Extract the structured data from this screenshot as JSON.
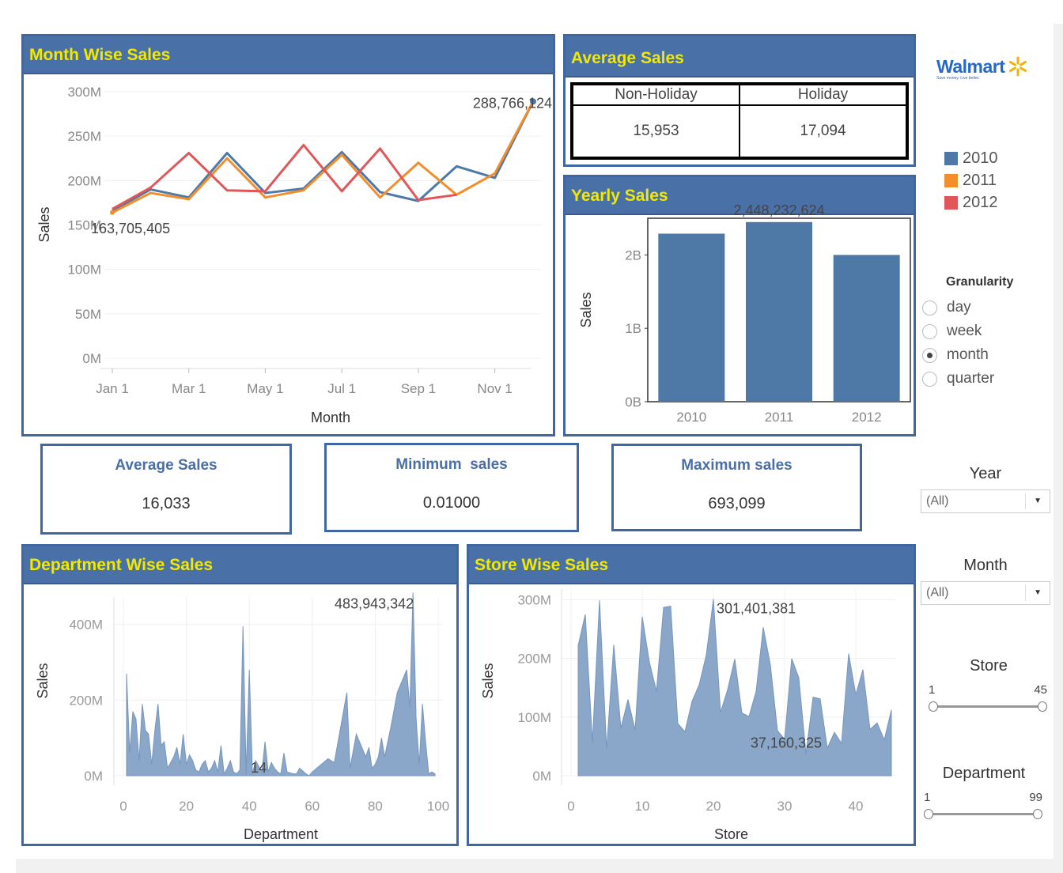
{
  "month_panel": {
    "title": "Month Wise Sales"
  },
  "avg_sales_panel": {
    "title": "Average Sales",
    "headers": [
      "Non-Holiday",
      "Holiday"
    ],
    "values": [
      "15,953",
      "17,094"
    ]
  },
  "yearly_panel": {
    "title": "Yearly Sales"
  },
  "department_panel": {
    "title": "Department Wise Sales"
  },
  "store_panel": {
    "title": "Store Wise Sales"
  },
  "kpis": [
    {
      "title": "Average Sales",
      "value": "16,033"
    },
    {
      "title": "Minimum  sales",
      "value": "0.01000"
    },
    {
      "title": "Maximum sales",
      "value": "693,099"
    }
  ],
  "logo": {
    "word": "Walmart",
    "tagline": "Save money. Live better."
  },
  "legend": {
    "items": [
      {
        "label": "2010",
        "color": "#4e79a7"
      },
      {
        "label": "2011",
        "color": "#f28e2b"
      },
      {
        "label": "2012",
        "color": "#e15759"
      }
    ]
  },
  "granularity": {
    "title": "Granularity",
    "options": [
      "day",
      "week",
      "month",
      "quarter"
    ],
    "selected": "month"
  },
  "filters": {
    "year": {
      "title": "Year",
      "value": "(All)"
    },
    "month": {
      "title": "Month",
      "value": "(All)"
    },
    "store": {
      "title": "Store",
      "min": "1",
      "max": "45"
    },
    "department": {
      "title": "Department",
      "min": "1",
      "max": "99"
    }
  },
  "chart_data": [
    {
      "id": "month",
      "type": "line",
      "xlabel": "Month",
      "ylabel": "Sales",
      "x_ticks": [
        "Jan 1",
        "Mar 1",
        "May 1",
        "Jul 1",
        "Sep 1",
        "Nov 1"
      ],
      "y_ticks": [
        "0M",
        "50M",
        "100M",
        "150M",
        "200M",
        "250M",
        "300M"
      ],
      "ylim": [
        0,
        300
      ],
      "y_unit": "M",
      "x_index_range": [
        1,
        12
      ],
      "series": [
        {
          "name": "2010",
          "color": "#4e79a7",
          "x": [
            1,
            2,
            3,
            4,
            5,
            6,
            7,
            8,
            9,
            10,
            11,
            12
          ],
          "values": [
            166,
            190,
            181,
            231,
            186,
            191,
            232,
            187,
            177,
            216,
            203,
            289
          ]
        },
        {
          "name": "2011",
          "color": "#f28e2b",
          "x": [
            1,
            2,
            3,
            4,
            5,
            6,
            7,
            8,
            9,
            10,
            11,
            12
          ],
          "values": [
            164,
            186,
            179,
            225,
            181,
            189,
            229,
            181,
            220,
            184,
            208,
            289
          ]
        },
        {
          "name": "2012",
          "color": "#e15759",
          "x": [
            1,
            2,
            3,
            4,
            5,
            6,
            7,
            8,
            9,
            10
          ],
          "values": [
            168,
            192,
            231,
            189,
            188,
            240,
            188,
            236,
            178,
            184
          ]
        }
      ],
      "annotations": [
        {
          "text": "288,766,124",
          "x": 12,
          "y": 289
        },
        {
          "text": "163,705,405",
          "x": 1,
          "y": 164
        }
      ]
    },
    {
      "id": "yearly",
      "type": "bar",
      "ylabel": "Sales",
      "categories": [
        "2010",
        "2011",
        "2012"
      ],
      "values": [
        2.29,
        2.448232624,
        2.0
      ],
      "y_ticks": [
        "0B",
        "1B",
        "2B"
      ],
      "ylim": [
        0,
        2.5
      ],
      "y_unit": "B",
      "annotations": [
        {
          "text": "2,448,232,624",
          "category": "2011"
        }
      ]
    },
    {
      "id": "department",
      "type": "area",
      "xlabel": "Department",
      "ylabel": "Sales",
      "x_ticks": [
        "0",
        "20",
        "40",
        "60",
        "80",
        "100"
      ],
      "y_ticks": [
        "0M",
        "200M",
        "400M"
      ],
      "xlim": [
        0,
        100
      ],
      "ylim": [
        0,
        460
      ],
      "y_unit": "M",
      "x": [
        1,
        2,
        3,
        4,
        5,
        6,
        7,
        8,
        9,
        10,
        11,
        12,
        13,
        14,
        16,
        17,
        18,
        19,
        20,
        21,
        22,
        23,
        24,
        25,
        26,
        27,
        28,
        29,
        30,
        31,
        32,
        33,
        34,
        35,
        36,
        37,
        38,
        39,
        40,
        41,
        42,
        44,
        45,
        46,
        47,
        48,
        49,
        50,
        51,
        52,
        54,
        55,
        56,
        58,
        59,
        60,
        65,
        67,
        71,
        72,
        74,
        77,
        78,
        79,
        80,
        81,
        82,
        83,
        85,
        87,
        90,
        91,
        92,
        93,
        94,
        95,
        96,
        97,
        98,
        99
      ],
      "values": [
        270,
        60,
        170,
        150,
        40,
        190,
        120,
        110,
        30,
        120,
        190,
        80,
        90,
        20,
        50,
        75,
        30,
        110,
        30,
        55,
        40,
        15,
        10,
        30,
        40,
        10,
        20,
        40,
        10,
        80,
        5,
        20,
        40,
        10,
        5,
        15,
        395,
        5,
        280,
        5,
        40,
        10,
        90,
        10,
        35,
        20,
        10,
        5,
        60,
        10,
        5,
        5,
        20,
        5,
        0,
        10,
        45,
        35,
        220,
        20,
        110,
        50,
        75,
        20,
        30,
        50,
        100,
        50,
        130,
        220,
        280,
        180,
        484,
        150,
        30,
        190,
        90,
        5,
        10,
        5
      ],
      "annotations": [
        {
          "text": "483,943,342",
          "x": 92,
          "y": 484
        },
        {
          "text": "14",
          "x": 43,
          "y": 0
        }
      ]
    },
    {
      "id": "store",
      "type": "area",
      "xlabel": "Store",
      "ylabel": "Sales",
      "x_ticks": [
        "0",
        "10",
        "20",
        "30",
        "40"
      ],
      "y_ticks": [
        "0M",
        "100M",
        "200M",
        "300M"
      ],
      "xlim": [
        0,
        45
      ],
      "ylim": [
        0,
        310
      ],
      "y_unit": "M",
      "x": [
        1,
        2,
        3,
        4,
        5,
        6,
        7,
        8,
        9,
        10,
        11,
        12,
        13,
        14,
        15,
        16,
        17,
        18,
        19,
        20,
        21,
        22,
        23,
        24,
        25,
        26,
        27,
        28,
        29,
        30,
        31,
        32,
        33,
        34,
        35,
        36,
        37,
        38,
        39,
        40,
        41,
        42,
        43,
        44,
        45
      ],
      "values": [
        222,
        275,
        57,
        299,
        45,
        223,
        81,
        130,
        78,
        271,
        194,
        144,
        287,
        289,
        89,
        75,
        127,
        155,
        206,
        301,
        108,
        147,
        199,
        107,
        101,
        144,
        253,
        189,
        77,
        62,
        200,
        167,
        37,
        134,
        131,
        47,
        74,
        55,
        208,
        138,
        181,
        79,
        90,
        61,
        112
      ],
      "annotations": [
        {
          "text": "301,401,381",
          "x": 20,
          "y": 301
        },
        {
          "text": "37,160,325",
          "x": 33,
          "y": 37
        }
      ]
    }
  ]
}
